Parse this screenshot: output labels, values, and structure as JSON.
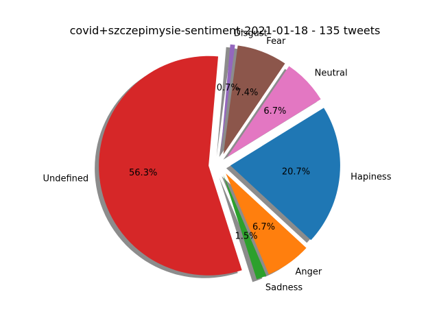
{
  "chart_data": {
    "type": "pie",
    "title": "covid+szczepimysie-sentiment-2021-01-18 - 135 tweets",
    "slices": [
      {
        "label": "Undefined",
        "percent_label": "56.3%",
        "value": 56.3,
        "color": "#d62728"
      },
      {
        "label": "Sadness",
        "percent_label": "1.5%",
        "value": 1.5,
        "color": "#2ca02c"
      },
      {
        "label": "Anger",
        "percent_label": "6.7%",
        "value": 6.7,
        "color": "#ff7f0e"
      },
      {
        "label": "Hapiness",
        "percent_label": "20.7%",
        "value": 20.7,
        "color": "#1f77b4"
      },
      {
        "label": "Neutral",
        "percent_label": "6.7%",
        "value": 6.7,
        "color": "#e377c2"
      },
      {
        "label": "Fear",
        "percent_label": "7.4%",
        "value": 7.4,
        "color": "#8c564b"
      },
      {
        "label": "Disgust",
        "percent_label": "0.7%",
        "value": 0.7,
        "color": "#9467bd"
      }
    ],
    "start_angle_deg": 85,
    "exploded": true,
    "shadow": true
  }
}
